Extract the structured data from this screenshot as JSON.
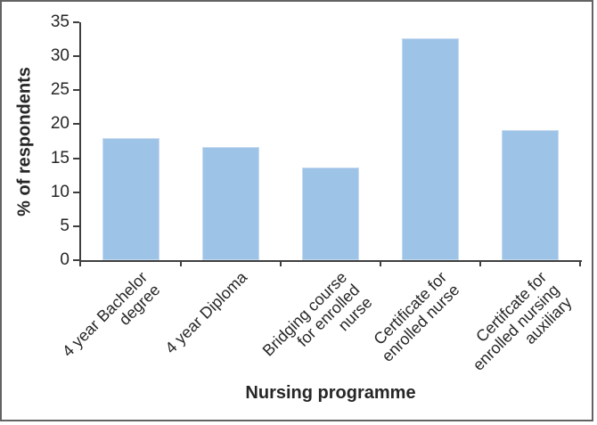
{
  "chart_data": {
    "type": "bar",
    "title": "",
    "xlabel": "Nursing programme",
    "ylabel": "% of respondents",
    "categories": [
      "4 year Bachelor degree",
      "4 year Diploma",
      "Bridging course for enrolled nurse",
      "Certificate for enrolled nurse",
      "Certifcate for enrolled nursing auxiliary"
    ],
    "category_lines": [
      [
        "4 year Bachelor",
        "degree"
      ],
      [
        "4 year Diploma"
      ],
      [
        "Bridging course",
        "for enrolled",
        "nurse"
      ],
      [
        "Certificate for",
        "enrolled nurse"
      ],
      [
        "Certifcate for",
        "enrolled nursing",
        "auxiliary"
      ]
    ],
    "values": [
      18,
      16.7,
      13.6,
      32.7,
      19.1
    ],
    "ylim": [
      0,
      35
    ],
    "yticks": [
      0,
      5,
      10,
      15,
      20,
      25,
      30,
      35
    ],
    "grid": false,
    "legend_position": "none",
    "bar_color": "#9DC3E6",
    "axis_color": "#3f3f3f",
    "text_color": "#262626",
    "frame_border_color": "#636363"
  }
}
